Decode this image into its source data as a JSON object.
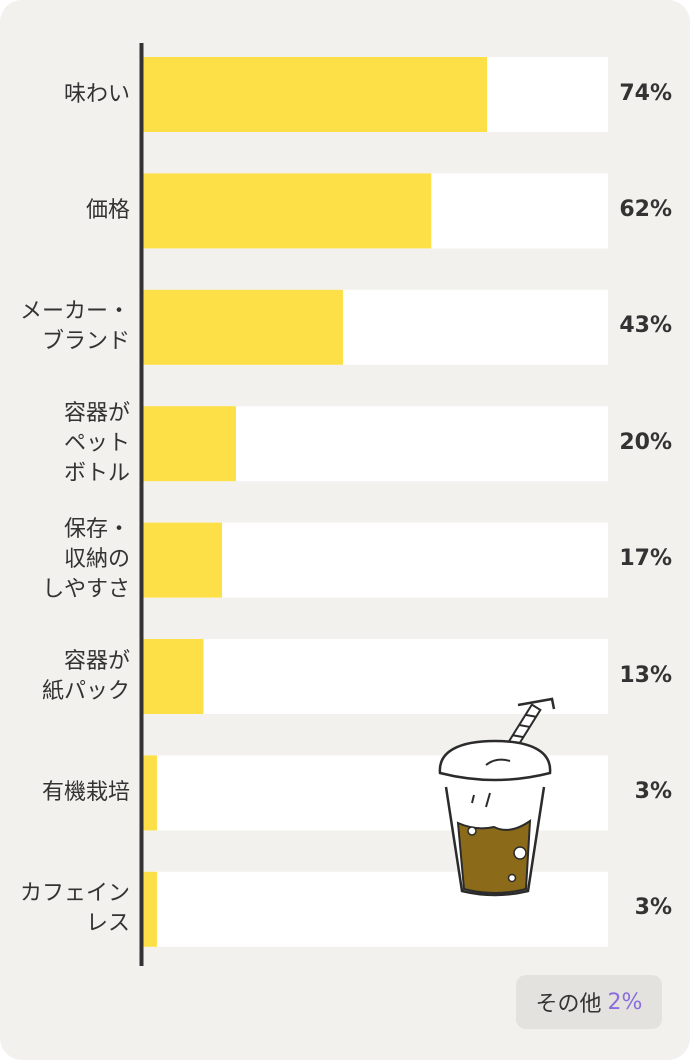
{
  "chart_data": {
    "type": "bar",
    "orientation": "horizontal",
    "categories": [
      "味わい",
      "価格",
      "メーカー・\nブランド",
      "容器が\nペット\nボトル",
      "保存・\n収納の\nしやすさ",
      "容器が\n紙パック",
      "有機栽培",
      "カフェイン\nレス"
    ],
    "values": [
      74,
      62,
      43,
      20,
      17,
      13,
      3,
      3
    ],
    "value_labels": [
      "74%",
      "62%",
      "43%",
      "20%",
      "17%",
      "13%",
      "3%",
      "3%"
    ],
    "xlim": [
      0,
      100
    ],
    "grid": false,
    "colors": {
      "bar": "#fde047",
      "track": "#ffffff",
      "axis": "#333333"
    }
  },
  "other": {
    "label": "その他",
    "value": "2%"
  },
  "illustration": {
    "icon": "iced-coffee-cup-icon"
  }
}
